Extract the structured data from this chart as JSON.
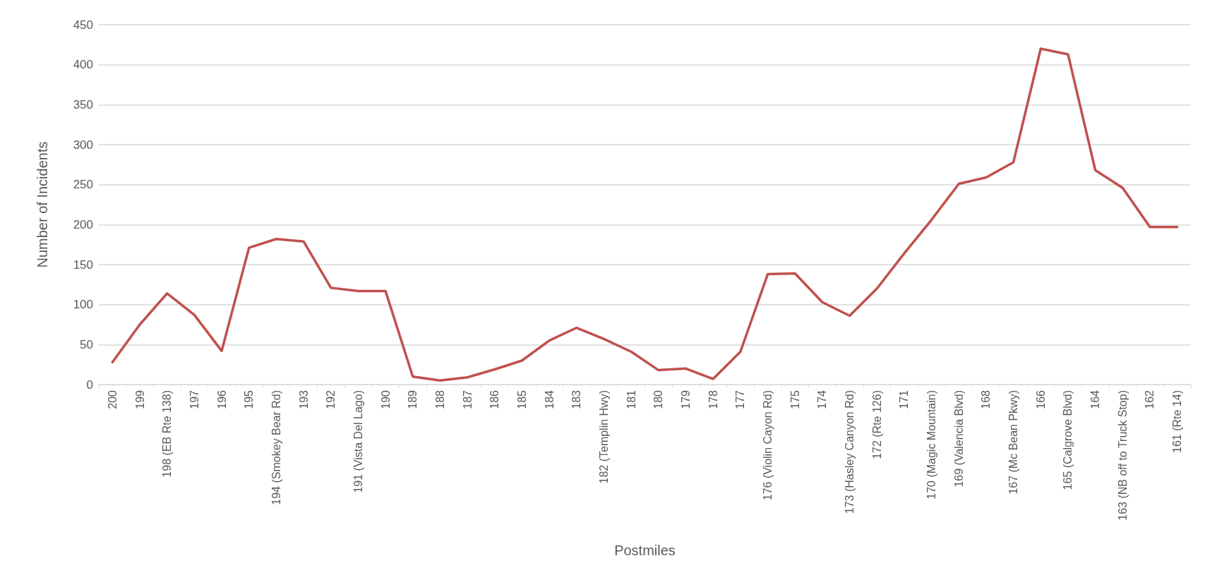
{
  "chart_data": {
    "type": "line",
    "xlabel": "Postmiles",
    "ylabel": "Number of Incidents",
    "categories": [
      "200",
      "199",
      "198 (EB Rte 138)",
      "197",
      "196",
      "195",
      "194 (Smokey Bear Rd)",
      "193",
      "192",
      "191 (Vista Del Lago)",
      "190",
      "189",
      "188",
      "187",
      "186",
      "185",
      "184",
      "183",
      "182 (Templin Hwy)",
      "181",
      "180",
      "179",
      "178",
      "177",
      "176 (Violin Cayon Rd)",
      "175",
      "174",
      "173 (Hasley Canyon Rd)",
      "172 (Rte 126)",
      "171",
      "170 (Magic Mountain)",
      "169 (Valencia Blvd)",
      "168",
      "167 (Mc Bean Pkwy)",
      "166",
      "165 (Calgrove Blvd)",
      "164",
      "163 (NB off to Truck Stop)",
      "162",
      "161 (Rte 14)"
    ],
    "series": [
      {
        "color": "#c0504d",
        "values": [
          28,
          75,
          114,
          87,
          42,
          171,
          182,
          179,
          121,
          117,
          117,
          10,
          5,
          9,
          19,
          30,
          55,
          71,
          57,
          41,
          18,
          20,
          7,
          41,
          138,
          139,
          103,
          86,
          120,
          164,
          206,
          251,
          259,
          278,
          420,
          413,
          268,
          246,
          197,
          197
        ]
      }
    ],
    "ylim": [
      0,
      450
    ],
    "yticks": [
      0,
      50,
      100,
      150,
      200,
      250,
      300,
      350,
      400,
      450
    ],
    "grid": "y",
    "marker": "none",
    "line_style": "solid"
  }
}
